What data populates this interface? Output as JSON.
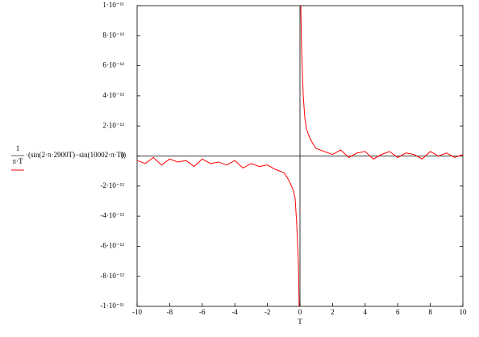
{
  "chart_data": {
    "type": "line",
    "x_label": "T",
    "legend_fraction": [
      "1",
      "π·T"
    ],
    "x": [
      -10,
      -9.5,
      -9,
      -8.5,
      -8,
      -7.5,
      -7,
      -6.5,
      -6,
      -5.5,
      -5,
      -4.5,
      -4,
      -3.5,
      -3,
      -2.5,
      -2,
      -1.5,
      -1,
      -0.8,
      -0.6,
      -0.4,
      -0.3,
      -0.2,
      -0.1,
      -0.05,
      0,
      0.05,
      0.1,
      0.2,
      0.3,
      0.4,
      0.6,
      0.8,
      1,
      1.5,
      2,
      2.5,
      3,
      3.5,
      4,
      4.5,
      5,
      5.5,
      6,
      6.5,
      7,
      7.5,
      8,
      8.5,
      9,
      9.5,
      10
    ],
    "series": [
      {
        "name": "·(sin(2·π·2900T)−sin(10002·π·T))",
        "color": "#ff0000",
        "values": [
          -3e-13,
          -5e-13,
          -1e-13,
          -6e-13,
          -2e-13,
          -4e-13,
          -3e-13,
          -7e-13,
          -2e-13,
          -5e-13,
          -4e-13,
          -6e-13,
          -3e-13,
          -8e-13,
          -5e-13,
          -7e-13,
          -6e-13,
          -9e-13,
          -1.1e-12,
          -1.4e-12,
          -1.8e-12,
          -2.3e-12,
          -2.8e-12,
          -4.5e-12,
          -7e-12,
          -1e-11,
          null,
          1e-11,
          7e-12,
          4e-12,
          2.5e-12,
          1.8e-12,
          1.2e-12,
          8e-13,
          5e-13,
          3e-13,
          1e-13,
          4e-13,
          -1e-13,
          2e-13,
          3e-13,
          -2e-13,
          1e-13,
          3e-13,
          -1e-13,
          2e-13,
          1e-13,
          -2e-13,
          3e-13,
          0,
          2e-13,
          -1e-13,
          1e-13
        ]
      }
    ],
    "xlim": [
      -10,
      10
    ],
    "xticks": [
      -10,
      -8,
      -6,
      -4,
      -2,
      0,
      2,
      4,
      6,
      8,
      10
    ],
    "ylim": [
      -1e-11,
      1e-11
    ],
    "yticks": [
      {
        "value": -1e-11,
        "label": "-1·10⁻¹¹"
      },
      {
        "value": -8e-12,
        "label": "-8·10⁻¹²"
      },
      {
        "value": -6e-12,
        "label": "-6·10⁻¹²"
      },
      {
        "value": -4e-12,
        "label": "-4·10⁻¹²"
      },
      {
        "value": -2e-12,
        "label": "-2·10⁻¹²"
      },
      0,
      {
        "value": 2e-12,
        "label": "2·10⁻¹²"
      },
      {
        "value": 4e-12,
        "label": "4·10⁻¹²"
      },
      {
        "value": 6e-12,
        "label": "6·10⁻¹²"
      },
      {
        "value": 8e-12,
        "label": "8·10⁻¹²"
      },
      {
        "value": 1e-11,
        "label": "1·10⁻¹¹"
      }
    ]
  }
}
